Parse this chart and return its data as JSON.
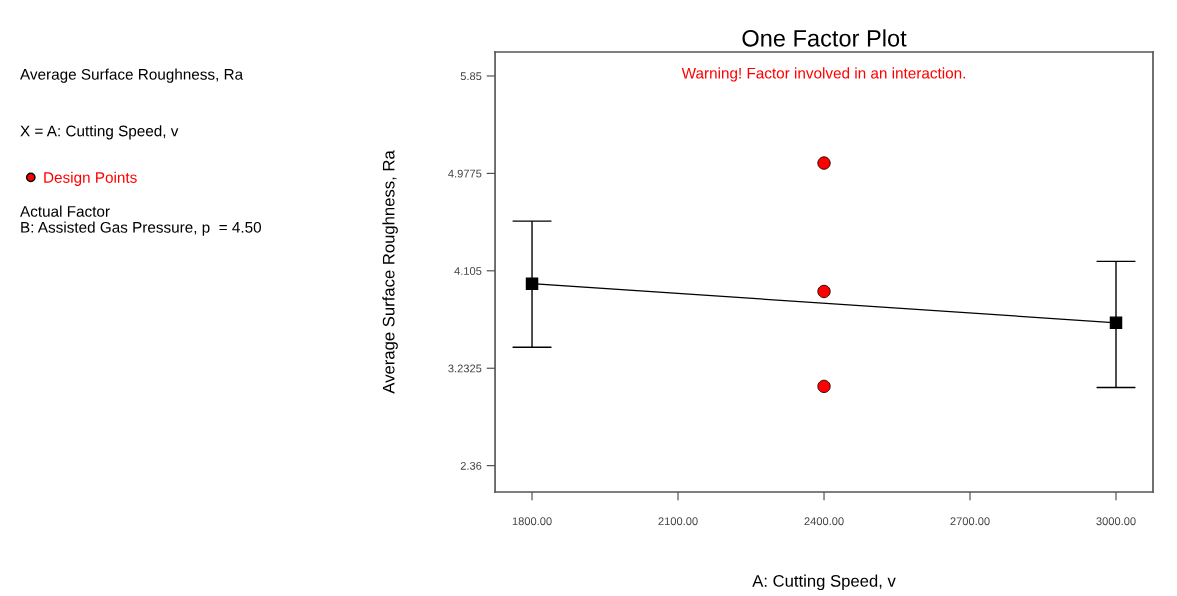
{
  "chart_data": {
    "type": "line",
    "title": "One Factor Plot",
    "xlabel": "A: Cutting Speed, v",
    "ylabel": "Average Surface Roughness, Ra",
    "annotations": [
      "Warning! Factor involved in an interaction.",
      "Average Surface Roughness, Ra",
      "X = A: Cutting Speed, v",
      "Actual Factor\nB: Assisted Gas Pressure, p  = 4.50"
    ],
    "series": [
      {
        "color": "#000000",
        "x": [
          1800,
          3000
        ],
        "values": [
          3.99,
          3.64
        ],
        "errors": [
          [
            3.42,
            4.55
          ],
          [
            3.06,
            4.19
          ]
        ],
        "marker": "square"
      },
      {
        "type": "scatter",
        "name": "Design Points",
        "color": "#ff0000",
        "x": [
          2400,
          2400,
          2400
        ],
        "values": [
          5.07,
          3.92,
          3.07
        ],
        "marker": "circle"
      }
    ],
    "xlim": [
      1724,
      3076
    ],
    "ylim": [
      2.124,
      6.065
    ],
    "xticks": [
      {
        "value": 1800,
        "label": "1800.00"
      },
      {
        "value": 2100,
        "label": "2100.00"
      },
      {
        "value": 2400,
        "label": "2400.00"
      },
      {
        "value": 2700,
        "label": "2700.00"
      },
      {
        "value": 3000,
        "label": "3000.00"
      }
    ],
    "yticks": [
      2.36,
      3.2325,
      4.105,
      4.9775,
      5.85
    ],
    "grid": false,
    "legend": "left"
  }
}
